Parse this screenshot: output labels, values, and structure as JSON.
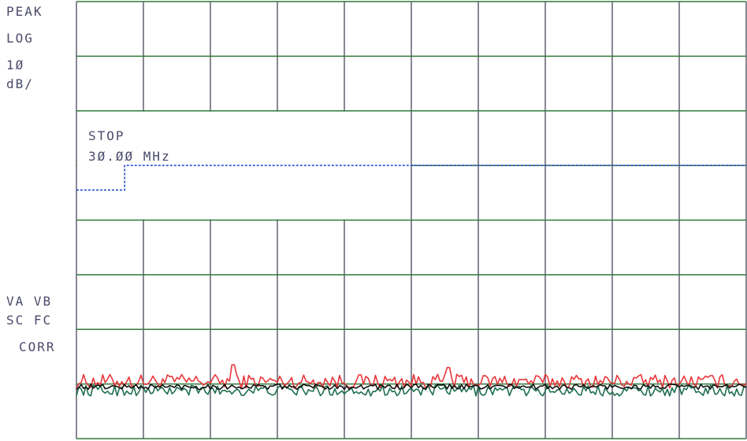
{
  "annotations": {
    "detector": "PEAK",
    "scale": "LOG",
    "scale_value": "1Ø",
    "scale_unit": "dB/",
    "marker_label": "STOP",
    "marker_value": "3Ø.ØØ MHz",
    "trace_flags_1": "VA VB",
    "trace_flags_2": "SC FC",
    "correction": "CORR"
  },
  "colors": {
    "grid_vertical": "#555566",
    "grid_horizontal": "#2f7a3a",
    "grid_top_bottom": "#2f7a3a",
    "limit_line": "#2b4fd6",
    "trace_max": "#e8363a",
    "trace_avg": "#1f6f4e",
    "trace_ref": "#111111",
    "text": "#4a4a6a"
  },
  "chart_data": {
    "type": "line",
    "grid": true,
    "x_divisions": 10,
    "y_divisions": 8,
    "ylim": [
      0,
      8
    ],
    "xlim": [
      0,
      10
    ],
    "limit_line": {
      "style": "dashed",
      "points": [
        [
          0,
          4.55
        ],
        [
          0.72,
          4.55
        ],
        [
          0.72,
          5.0
        ],
        [
          10,
          5.0
        ]
      ]
    },
    "series": [
      {
        "style": "noise",
        "color_key": "trace_max",
        "base": 1.05,
        "amplitude": 0.13,
        "peaks": [
          [
            2.35,
            1.35
          ],
          [
            5.55,
            1.3
          ]
        ]
      },
      {
        "style": "noise",
        "color_key": "trace_avg",
        "base": 0.88,
        "amplitude": 0.1
      },
      {
        "style": "noise",
        "color_key": "trace_ref",
        "base": 0.95,
        "amplitude": 0.05
      }
    ]
  }
}
